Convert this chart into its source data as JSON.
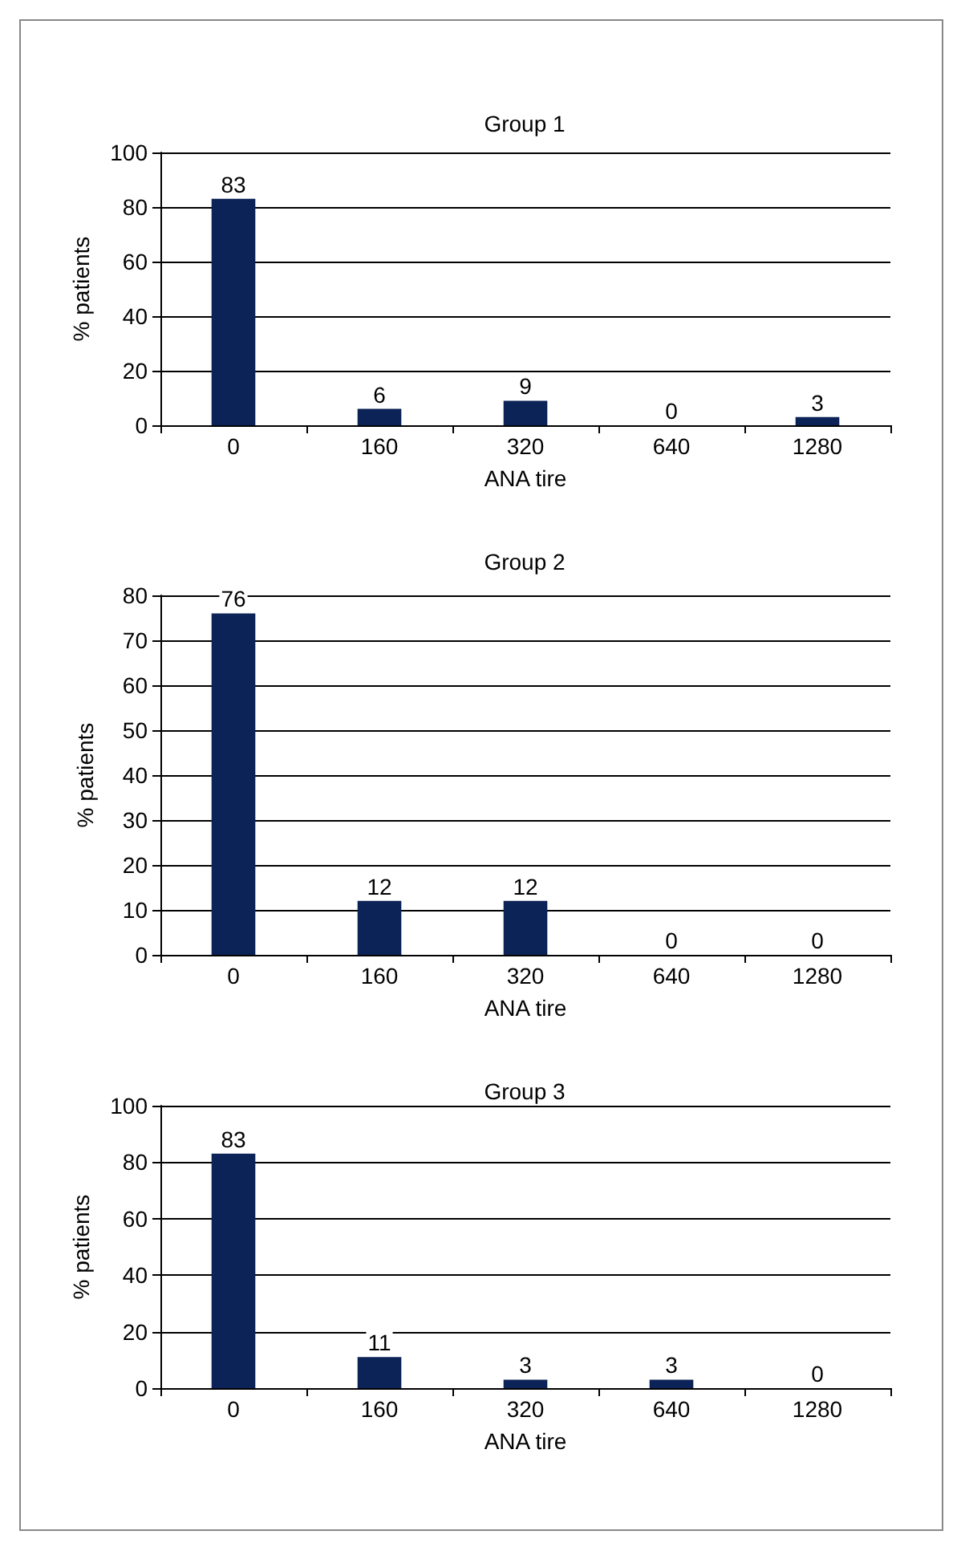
{
  "chart_data": [
    {
      "type": "bar",
      "title": "Group 1",
      "xlabel": "ANA tire",
      "ylabel": "% patients",
      "categories": [
        "0",
        "160",
        "320",
        "640",
        "1280"
      ],
      "values": [
        83,
        6,
        9,
        0,
        3
      ],
      "color": "#0b2356",
      "data_labels": true,
      "ylim": [
        0,
        100
      ],
      "yticks": [
        0,
        20,
        40,
        60,
        80,
        100
      ],
      "grid": "y"
    },
    {
      "type": "bar",
      "title": "Group 2",
      "xlabel": "ANA tire",
      "ylabel": "% patients",
      "categories": [
        "0",
        "160",
        "320",
        "640",
        "1280"
      ],
      "values": [
        76,
        12,
        12,
        0,
        0
      ],
      "color": "#0b2356",
      "data_labels": true,
      "ylim": [
        0,
        80
      ],
      "yticks": [
        0,
        10,
        20,
        30,
        40,
        50,
        60,
        70,
        80
      ],
      "grid": "y"
    },
    {
      "type": "bar",
      "title": "Group 3",
      "xlabel": "ANA tire",
      "ylabel": "% patients",
      "categories": [
        "0",
        "160",
        "320",
        "640",
        "1280"
      ],
      "values": [
        83,
        11,
        3,
        3,
        0
      ],
      "color": "#0b2356",
      "data_labels": true,
      "ylim": [
        0,
        100
      ],
      "yticks": [
        0,
        20,
        40,
        60,
        80,
        100
      ],
      "grid": "y"
    }
  ]
}
